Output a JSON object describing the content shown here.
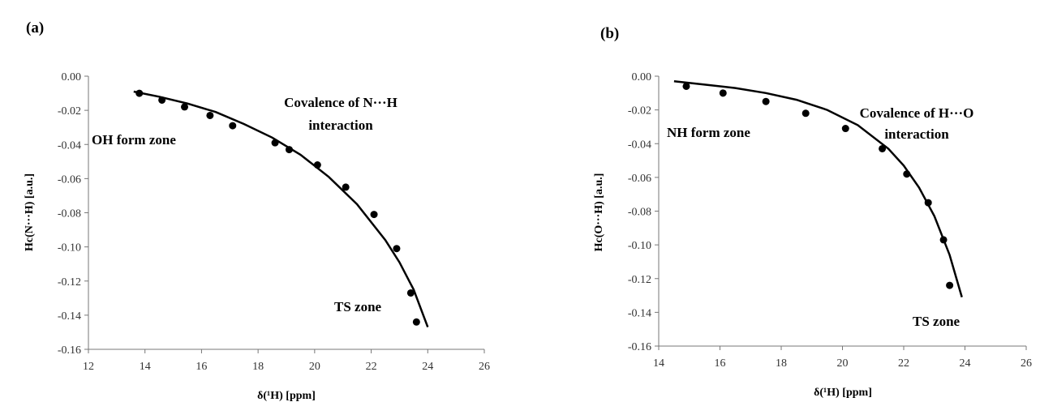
{
  "chart_data": [
    {
      "type": "scatter",
      "panel_label": "(a)",
      "xlabel": "δ(¹H) [ppm]",
      "ylabel": "Hc(N···H) [a.u.]",
      "xlim": [
        12,
        26
      ],
      "ylim": [
        -0.16,
        0.0
      ],
      "x_ticks": [
        "12",
        "14",
        "16",
        "18",
        "20",
        "22",
        "24",
        "26"
      ],
      "y_ticks": [
        "0.00",
        "-0.02",
        "-0.04",
        "-0.06",
        "-0.08",
        "-0.10",
        "-0.12",
        "-0.14",
        "-0.16"
      ],
      "annotations": [
        "Covalence of N···H",
        "interaction",
        "OH form zone",
        "TS zone"
      ],
      "x": [
        13.8,
        14.6,
        15.4,
        16.3,
        17.1,
        18.6,
        19.1,
        20.1,
        21.1,
        22.1,
        22.9,
        23.4,
        23.6
      ],
      "y": [
        -0.01,
        -0.014,
        -0.018,
        -0.023,
        -0.029,
        -0.039,
        -0.043,
        -0.052,
        -0.065,
        -0.081,
        -0.101,
        -0.127,
        -0.144
      ],
      "fit_x": [
        13.6,
        14.5,
        15.5,
        16.5,
        17.5,
        18.5,
        19.5,
        20.5,
        21.5,
        22.5,
        23.0,
        23.5,
        24.0
      ],
      "fit_y": [
        -0.009,
        -0.012,
        -0.016,
        -0.021,
        -0.028,
        -0.036,
        -0.046,
        -0.059,
        -0.075,
        -0.096,
        -0.109,
        -0.125,
        -0.147
      ],
      "grid": false
    },
    {
      "type": "scatter",
      "panel_label": "(b)",
      "xlabel": "δ(¹H) [ppm]",
      "ylabel": "Hc(O···H) [a.u.]",
      "xlim": [
        14,
        26
      ],
      "ylim": [
        -0.16,
        0.0
      ],
      "x_ticks": [
        "14",
        "16",
        "18",
        "20",
        "22",
        "24",
        "26"
      ],
      "y_ticks": [
        "0.00",
        "-0.02",
        "-0.04",
        "-0.06",
        "-0.08",
        "-0.10",
        "-0.12",
        "-0.14",
        "-0.16"
      ],
      "annotations": [
        "Covalence of H···O",
        "interaction",
        "NH form zone",
        "TS zone"
      ],
      "x": [
        14.9,
        16.1,
        17.5,
        18.8,
        20.1,
        21.3,
        22.1,
        22.8,
        23.3,
        23.5
      ],
      "y": [
        -0.006,
        -0.01,
        -0.015,
        -0.022,
        -0.031,
        -0.043,
        -0.058,
        -0.075,
        -0.097,
        -0.124
      ],
      "fit_x": [
        14.5,
        15.5,
        16.5,
        17.5,
        18.5,
        19.5,
        20.5,
        21.5,
        22.0,
        22.5,
        23.0,
        23.5,
        23.9
      ],
      "fit_y": [
        -0.003,
        -0.005,
        -0.007,
        -0.01,
        -0.014,
        -0.02,
        -0.029,
        -0.043,
        -0.053,
        -0.066,
        -0.083,
        -0.106,
        -0.131
      ],
      "grid": false
    }
  ]
}
